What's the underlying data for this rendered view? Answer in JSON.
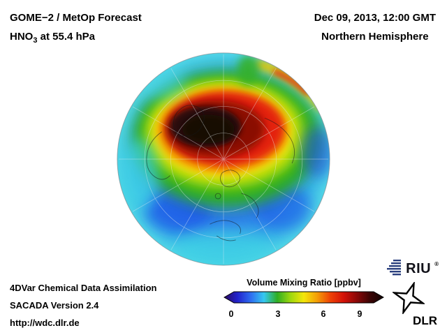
{
  "header": {
    "title": "GOME−2 / MetOp Forecast",
    "species_prefix": "HNO",
    "species_sub": "3",
    "species_suffix": " at 55.4 hPa",
    "datetime": "Dec 09, 2013, 12:00 GMT",
    "region": "Northern Hemisphere"
  },
  "footer": {
    "line1": "4DVar Chemical Data Assimilation",
    "line2": "SACADA Version 2.4",
    "url": "http://wdc.dlr.de"
  },
  "colorbar": {
    "label": "Volume Mixing Ratio [ppbv]",
    "ticks": [
      "0",
      "3",
      "6",
      "9"
    ],
    "gradient": [
      "#2a0a60",
      "#2222cc",
      "#2e6df0",
      "#35c8f0",
      "#2fae22",
      "#9ed80e",
      "#f4e60a",
      "#f49e06",
      "#ee4206",
      "#d41208",
      "#8a0808",
      "#3a0404",
      "#100202"
    ]
  },
  "logos": {
    "riu": "RIU",
    "riu_reg": "®",
    "dlr": "DLR"
  },
  "chart_data": {
    "type": "heatmap",
    "title": "GOME−2 / MetOp Forecast — HNO3 at 55.4 hPa",
    "datetime": "Dec 09, 2013, 12:00 GMT",
    "region": "Northern Hemisphere",
    "projection": "orthographic, North Pole centered",
    "variable": "HNO3 volume mixing ratio",
    "pressure_level_hPa": 55.4,
    "colorbar_label": "Volume Mixing Ratio [ppbv]",
    "colorbar_range": [
      0,
      10
    ],
    "colorbar_ticks": [
      0,
      3,
      6,
      9
    ],
    "pattern": [
      {
        "area": "Arctic vortex core over Greenland / central Arctic",
        "value_ppbv": "≥10, off-scale dark maroon-black maximum"
      },
      {
        "area": "ring surrounding vortex core",
        "value_ppbv": "7–10 (red)"
      },
      {
        "area": "band from Siberia to North Atlantic",
        "value_ppbv": "5–7 (orange/yellow)"
      },
      {
        "area": "mid-latitude ring",
        "value_ppbv": "3–5 (green)"
      },
      {
        "area": "subtropics / hemisphere edge",
        "value_ppbv": "0–3 (cyan/blue)"
      },
      {
        "area": "filament along north-east rim",
        "value_ppbv": "5–8 (yellow-red streak)"
      }
    ]
  }
}
